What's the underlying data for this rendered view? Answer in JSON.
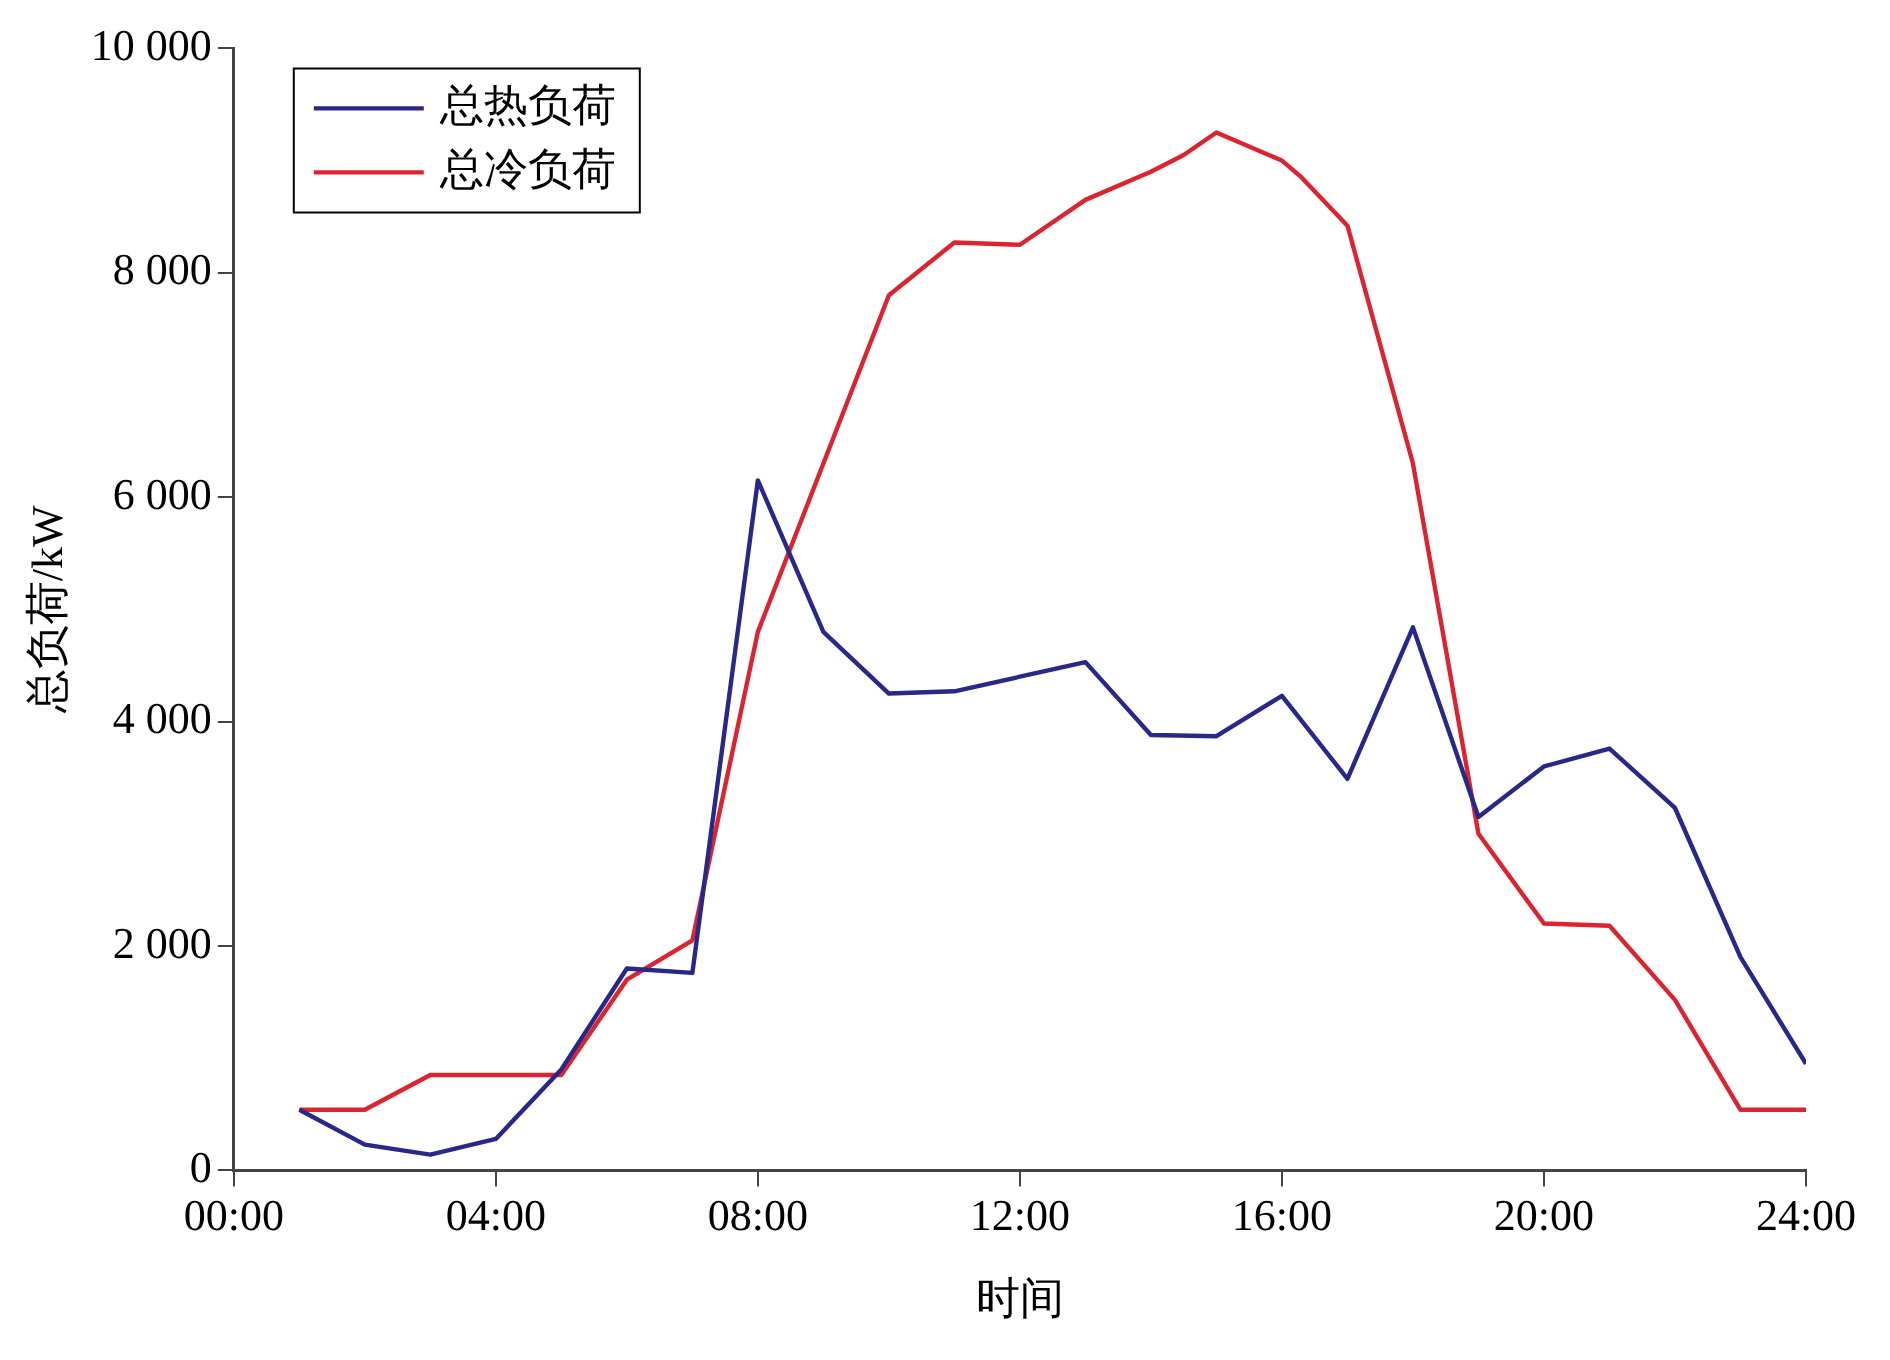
{
  "chart_data": {
    "type": "line",
    "xlabel": "时间",
    "ylabel": "总负荷/kW",
    "xlim": [
      0,
      24
    ],
    "xticks": [
      {
        "value": 0,
        "label": "00:00"
      },
      {
        "value": 4,
        "label": "04:00"
      },
      {
        "value": 8,
        "label": "08:00"
      },
      {
        "value": 12,
        "label": "12:00"
      },
      {
        "value": 16,
        "label": "16:00"
      },
      {
        "value": 20,
        "label": "20:00"
      },
      {
        "value": 24,
        "label": "24:00"
      }
    ],
    "ylim": [
      0,
      10000
    ],
    "yticks": [
      0,
      {
        "value": 2000,
        "label": "2 000"
      },
      {
        "value": 4000,
        "label": "4 000"
      },
      {
        "value": 6000,
        "label": "6 000"
      },
      {
        "value": 8000,
        "label": "8 000"
      },
      {
        "value": 10000,
        "label": "10 000"
      }
    ],
    "grid": false,
    "legend": "top left",
    "marker": "none",
    "line_style": "solid",
    "series": [
      {
        "name": "总热负荷",
        "color": "#27288a",
        "x": [
          1,
          2,
          3,
          4,
          5,
          6,
          7,
          8,
          9,
          10,
          11,
          12,
          13,
          14,
          15,
          16,
          17,
          18,
          19,
          20,
          21,
          22,
          23,
          24
        ],
        "values": [
          540,
          230,
          140,
          280,
          900,
          1800,
          1760,
          6150,
          4800,
          4250,
          4270,
          4400,
          4530,
          3880,
          3870,
          4230,
          3490,
          4840,
          3150,
          3600,
          3760,
          3230,
          1900,
          950
        ]
      },
      {
        "name": "总冷负荷",
        "color": "#dc2430",
        "x": [
          1,
          2,
          3,
          4,
          5,
          6,
          7,
          8,
          9,
          10,
          11,
          12,
          13,
          14,
          14.5,
          15,
          16,
          16.3,
          17,
          18,
          19,
          20,
          21,
          22,
          23,
          24
        ],
        "values": [
          540,
          540,
          850,
          850,
          850,
          1700,
          2050,
          4800,
          6300,
          7800,
          8270,
          8250,
          8650,
          8900,
          9050,
          9250,
          9000,
          8850,
          8420,
          6300,
          3000,
          2200,
          2180,
          1520,
          540,
          540
        ]
      }
    ]
  }
}
